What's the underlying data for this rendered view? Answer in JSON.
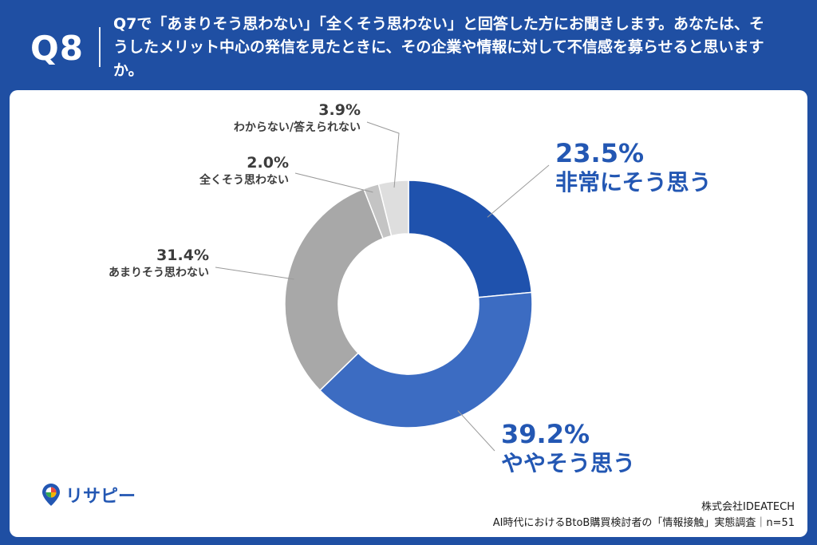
{
  "header": {
    "q_number": "Q8",
    "question": "Q7で「あまりそう思わない」「全くそう思わない」と回答した方にお聞きします。あなたは、そうしたメリット中心の発信を見たときに、その企業や情報に対して不信感を募らせると思いますか。"
  },
  "chart_data": {
    "type": "pie",
    "donut": true,
    "title": "",
    "slices": [
      {
        "label": "非常にそう思う",
        "value": 23.5,
        "display": "23.5%",
        "color": "#1f52ad"
      },
      {
        "label": "ややそう思う",
        "value": 39.2,
        "display": "39.2%",
        "color": "#3c6cc2"
      },
      {
        "label": "あまりそう思わない",
        "value": 31.4,
        "display": "31.4%",
        "color": "#a8a8a8"
      },
      {
        "label": "全くそう思わない",
        "value": 2.0,
        "display": "2.0%",
        "color": "#c4c4c4"
      },
      {
        "label": "わからない/答えられない",
        "value": 3.9,
        "display": "3.9%",
        "color": "#dedede"
      }
    ]
  },
  "logo": {
    "text": "リサピー",
    "icon": "pin-logo-icon"
  },
  "footer": {
    "company": "株式会社IDEATECH",
    "survey": "AI時代におけるBtoB購買検討者の「情報接触」実態調査｜n=51"
  }
}
